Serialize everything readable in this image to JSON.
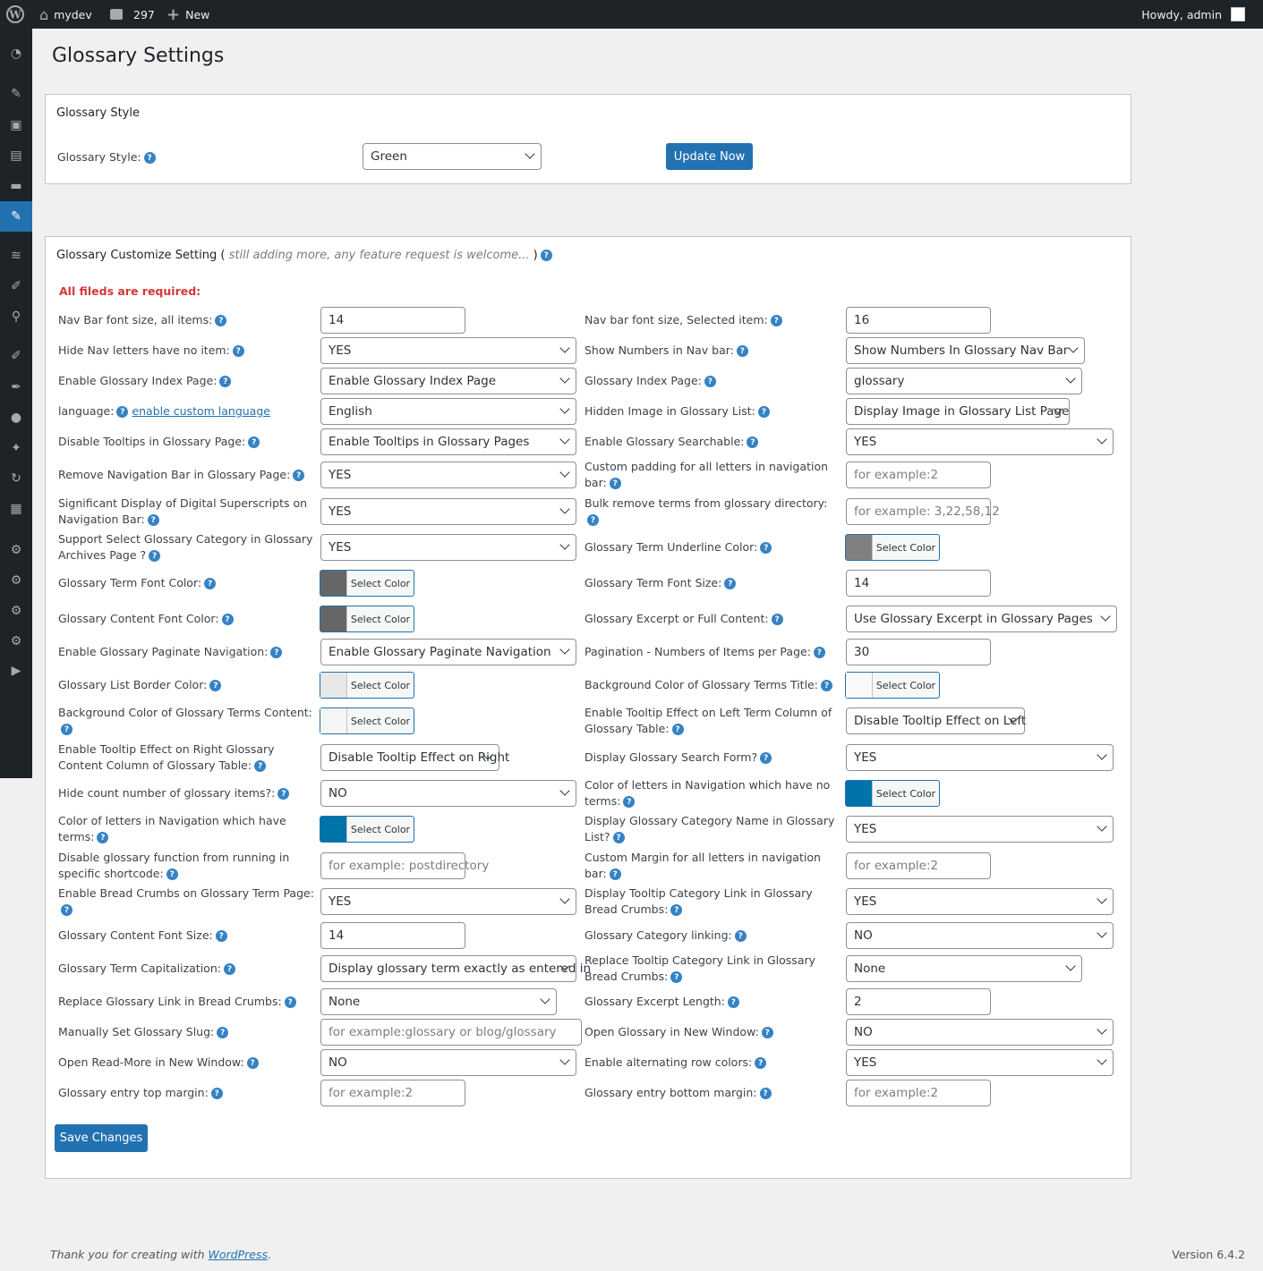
{
  "adminbar": {
    "site": "mydev",
    "comments": "297",
    "new": "New",
    "howdy": "Howdy, admin"
  },
  "page_title": "Glossary Settings",
  "style_panel": {
    "heading": "Glossary Style",
    "label": "Glossary Style:",
    "value": "Green",
    "button": "Update Now"
  },
  "customize": {
    "heading": "Glossary Customize Setting",
    "note_open": "(",
    "note": "still adding more, any feature request is welcome...",
    "note_close": ")",
    "required": "All fileds are required:",
    "save": "Save Changes",
    "required_color": "#d63638"
  },
  "rows": [
    {
      "l": {
        "label": "Nav Bar font size, all items:",
        "type": "input",
        "value": "14"
      },
      "r": {
        "label": "Nav bar font size, Selected item:",
        "type": "input",
        "value": "16"
      }
    },
    {
      "l": {
        "label": "Hide Nav letters have no item:",
        "type": "select",
        "value": "YES"
      },
      "r": {
        "label": "Show Numbers in Nav bar:",
        "type": "select",
        "value": "Show Numbers In Glossary Nav Bar"
      }
    },
    {
      "l": {
        "label": "Enable Glossary Index Page:",
        "type": "select",
        "value": "Enable Glossary Index Page"
      },
      "r": {
        "label": "Glossary Index Page:",
        "type": "select",
        "value": "glossary"
      }
    },
    {
      "l": {
        "label": "language:",
        "link": "enable custom language",
        "type": "select",
        "value": "English"
      },
      "r": {
        "label": "Hidden Image in Glossary List:",
        "type": "select",
        "value": "Display Image in Glossary List Page"
      }
    },
    {
      "l": {
        "label": "Disable Tooltips in Glossary Page:",
        "type": "select",
        "value": "Enable Tooltips in Glossary Pages"
      },
      "r": {
        "label": "Enable Glossary Searchable:",
        "type": "select",
        "value": "YES"
      }
    },
    {
      "l": {
        "label": "Remove Navigation Bar in Glossary Page:",
        "type": "select",
        "value": "YES"
      },
      "r": {
        "label": "Custom padding for all letters in navigation bar:",
        "type": "input",
        "placeholder": "for example:2"
      }
    },
    {
      "l": {
        "label": "Significant Display of Digital Superscripts on Navigation Bar:",
        "type": "select",
        "value": "YES"
      },
      "r": {
        "label": "Bulk remove terms from glossary directory:",
        "type": "input",
        "placeholder": "for example: 3,22,58,12"
      }
    },
    {
      "l": {
        "label": "Support Select Glossary Category in Glossary Archives Page ?",
        "type": "select",
        "value": "YES"
      },
      "r": {
        "label": "Glossary Term Underline Color:",
        "type": "color",
        "color": "#808080",
        "button": "Select Color"
      }
    },
    {
      "l": {
        "label": "Glossary Term Font Color:",
        "type": "color",
        "color": "#666666",
        "button": "Select Color"
      },
      "r": {
        "label": "Glossary Term Font Size:",
        "type": "input",
        "value": "14"
      }
    },
    {
      "l": {
        "label": "Glossary Content Font Color:",
        "type": "color",
        "color": "#666666",
        "button": "Select Color"
      },
      "r": {
        "label": "Glossary Excerpt or Full Content:",
        "type": "select",
        "value": "Use Glossary Excerpt in Glossary Pages"
      }
    },
    {
      "l": {
        "label": "Enable Glossary Paginate Navigation:",
        "type": "select",
        "value": "Enable Glossary Paginate Navigation"
      },
      "r": {
        "label": "Pagination - Numbers of Items per Page:",
        "type": "input",
        "value": "30"
      }
    },
    {
      "l": {
        "label": "Glossary List Border Color:",
        "type": "color",
        "color": "#e8e8e8",
        "button": "Select Color"
      },
      "r": {
        "label": "Background Color of Glossary Terms Title:",
        "type": "color",
        "color": "#f9f9f9",
        "button": "Select Color"
      }
    },
    {
      "l": {
        "label": "Background Color of Glossary Terms Content:",
        "type": "color",
        "color": "#f5f5f5",
        "button": "Select Color"
      },
      "r": {
        "label": "Enable Tooltip Effect on Left Term Column of Glossary Table:",
        "type": "select",
        "value": "Disable Tooltip Effect on Left"
      }
    },
    {
      "l": {
        "label": "Enable Tooltip Effect on Right Glossary Content Column of Glossary Table:",
        "type": "select",
        "value": "Disable Tooltip Effect on Right"
      },
      "r": {
        "label": "Display Glossary Search Form?",
        "type": "select",
        "value": "YES"
      }
    },
    {
      "l": {
        "label": "Hide count number of glossary items?:",
        "type": "select",
        "value": "NO"
      },
      "r": {
        "label": "Color of letters in Navigation which have no terms:",
        "type": "color",
        "color": "#0073aa",
        "button": "Select Color"
      }
    },
    {
      "l": {
        "label": "Color of letters in Navigation which have terms:",
        "type": "color",
        "color": "#0073aa",
        "button": "Select Color"
      },
      "r": {
        "label": "Display Glossary Category Name in Glossary List?",
        "type": "select",
        "value": "YES"
      }
    },
    {
      "l": {
        "label": "Disable glossary function from running in specific shortcode:",
        "type": "input",
        "placeholder": "for example: postdirectory"
      },
      "r": {
        "label": "Custom Margin for all letters in navigation bar:",
        "type": "input",
        "placeholder": "for example:2"
      }
    },
    {
      "l": {
        "label": "Enable Bread Crumbs on Glossary Term Page:",
        "type": "select",
        "value": "YES"
      },
      "r": {
        "label": "Display Tooltip Category Link in Glossary Bread Crumbs:",
        "type": "select",
        "value": "YES"
      }
    },
    {
      "l": {
        "label": "Glossary Content Font Size:",
        "type": "input",
        "value": "14"
      },
      "r": {
        "label": "Glossary Category linking:",
        "type": "select",
        "value": "NO"
      }
    },
    {
      "l": {
        "label": "Glossary Term Capitalization:",
        "type": "select",
        "value": "Display glossary term exactly as entered in"
      },
      "r": {
        "label": "Replace Tooltip Category Link in Glossary Bread Crumbs:",
        "type": "select",
        "value": "None"
      }
    },
    {
      "l": {
        "label": "Replace Glossary Link in Bread Crumbs:",
        "type": "select",
        "value": "None"
      },
      "r": {
        "label": "Glossary Excerpt Length:",
        "type": "input",
        "value": "2"
      }
    },
    {
      "l": {
        "label": "Manually Set Glossary Slug:",
        "type": "input",
        "placeholder": "for example:glossary or blog/glossary"
      },
      "r": {
        "label": "Open Glossary in New Window:",
        "type": "select",
        "value": "NO"
      }
    },
    {
      "l": {
        "label": "Open Read-More in New Window:",
        "type": "select",
        "value": "NO"
      },
      "r": {
        "label": "Enable alternating row colors:",
        "type": "select",
        "value": "YES"
      }
    },
    {
      "l": {
        "label": "Glossary entry top margin:",
        "type": "input",
        "placeholder": "for example:2"
      },
      "r": {
        "label": "Glossary entry bottom margin:",
        "type": "input",
        "placeholder": "for example:2"
      }
    }
  ],
  "footer": {
    "thanks": "Thank you for creating with",
    "link": "WordPress",
    "period": ".",
    "version": "Version 6.4.2"
  },
  "sidebar_icons": [
    "dashboard-icon",
    "pin-icon",
    "media-icon",
    "pages-icon",
    "comments-icon",
    "glossary-pin-icon",
    "stack-icon",
    "brush-icon",
    "plugins-icon",
    "plugin-icon",
    "pen-icon",
    "users-icon",
    "tools-icon",
    "sync-icon",
    "images-icon",
    "gear-icon",
    "gear-icon",
    "gear-icon",
    "gear-icon",
    "play-icon"
  ]
}
